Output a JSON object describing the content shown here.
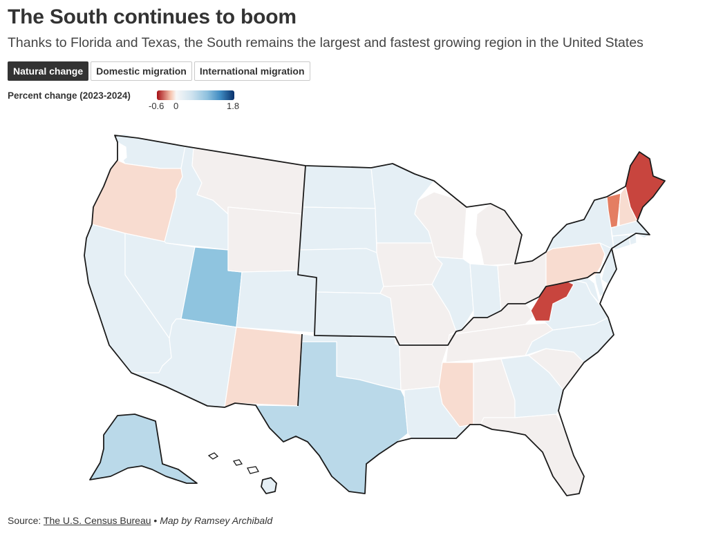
{
  "header": {
    "title": "The South continues to boom",
    "subtitle": "Thanks to Florida and Texas, the South remains the largest and fastest growing region in the United States"
  },
  "tabs": [
    {
      "label": "Natural change",
      "active": true
    },
    {
      "label": "Domestic migration",
      "active": false
    },
    {
      "label": "International migration",
      "active": false
    }
  ],
  "legend": {
    "label": "Percent change (2023-2024)",
    "min_label": "-0.6",
    "mid_label": "0",
    "max_label": "1.8",
    "min": -0.6,
    "max": 1.8
  },
  "colors": {
    "strong_negative": "#c8453e",
    "negative": "#e47e62",
    "light_negative": "#f8dcd0",
    "neutral": "#f3efee",
    "light_positive": "#e5eff5",
    "positive": "#bad9e9",
    "strong_positive": "#8fc4df",
    "border": "#1a1a1a"
  },
  "states": {
    "WA": "light_positive",
    "OR": "light_negative",
    "CA": "light_positive",
    "ID": "light_positive",
    "NV": "light_positive",
    "UT": "strong_positive",
    "AZ": "light_positive",
    "MT": "neutral",
    "WY": "neutral",
    "CO": "light_positive",
    "NM": "light_negative",
    "ND": "light_positive",
    "SD": "light_positive",
    "NE": "light_positive",
    "KS": "light_positive",
    "OK": "light_positive",
    "TX": "positive",
    "MN": "light_positive",
    "IA": "neutral",
    "MO": "neutral",
    "AR": "neutral",
    "LA": "light_positive",
    "WI": "neutral",
    "IL": "light_positive",
    "MI": "neutral",
    "IN": "light_positive",
    "OH": "neutral",
    "KY": "neutral",
    "TN": "neutral",
    "MS": "light_negative",
    "AL": "neutral",
    "GA": "light_positive",
    "FL": "neutral",
    "SC": "neutral",
    "NC": "light_positive",
    "VA": "light_positive",
    "WV": "strong_negative",
    "PA": "light_negative",
    "NY": "light_positive",
    "VT": "negative",
    "NH": "light_negative",
    "ME": "strong_negative",
    "MA": "light_positive",
    "CT": "light_positive",
    "RI": "light_positive",
    "NJ": "light_positive",
    "DE": "light_positive",
    "MD": "light_positive",
    "AK": "positive",
    "HI": "light_positive"
  },
  "footer": {
    "source_prefix": "Source: ",
    "source_link": "The U.S. Census Bureau",
    "separator": " • ",
    "credit": "Map by Ramsey Archibald"
  }
}
